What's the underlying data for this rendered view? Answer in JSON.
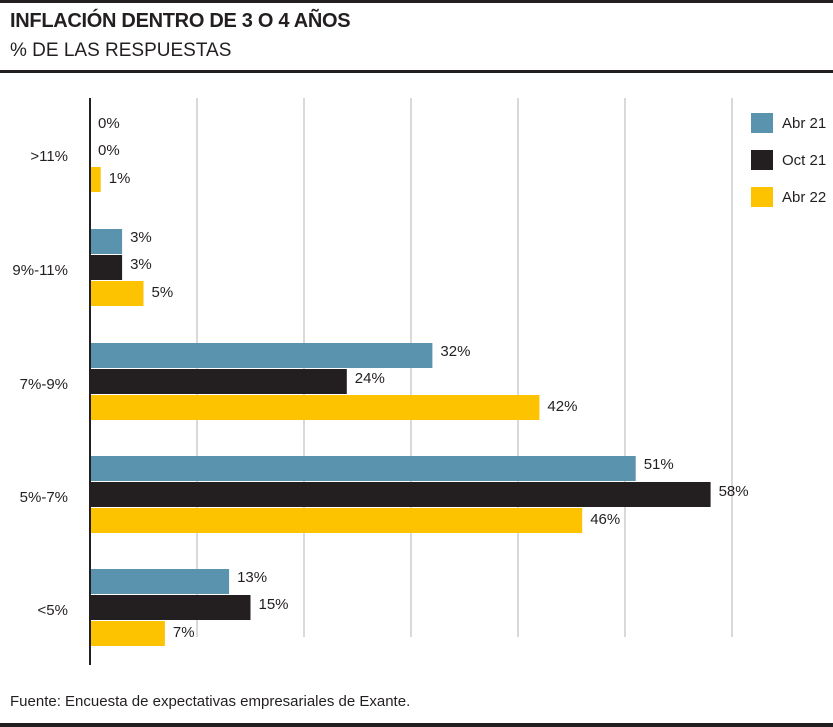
{
  "title": "INFLACIÓN DENTRO DE 3 O 4 AÑOS",
  "subtitle": "% DE LAS RESPUESTAS",
  "source": "Fuente: Encuesta de expectativas empresariales de Exante.",
  "chart_data": {
    "type": "bar",
    "orientation": "horizontal",
    "categories": [
      ">11%",
      "9%-11%",
      "7%-9%",
      "5%-7%",
      "<5%"
    ],
    "series": [
      {
        "name": "Abr 21",
        "color": "#5a93ae",
        "values": [
          0,
          3,
          32,
          51,
          13
        ]
      },
      {
        "name": "Oct 21",
        "color": "#231f20",
        "values": [
          0,
          3,
          24,
          58,
          15
        ]
      },
      {
        "name": "Abr 22",
        "color": "#fdc300",
        "values": [
          1,
          5,
          42,
          46,
          7
        ]
      }
    ],
    "value_suffix": "%",
    "xlim": [
      0,
      60
    ],
    "gridlines": [
      10,
      20,
      30,
      40,
      50,
      60
    ],
    "grid": true,
    "legend": "top-right"
  }
}
